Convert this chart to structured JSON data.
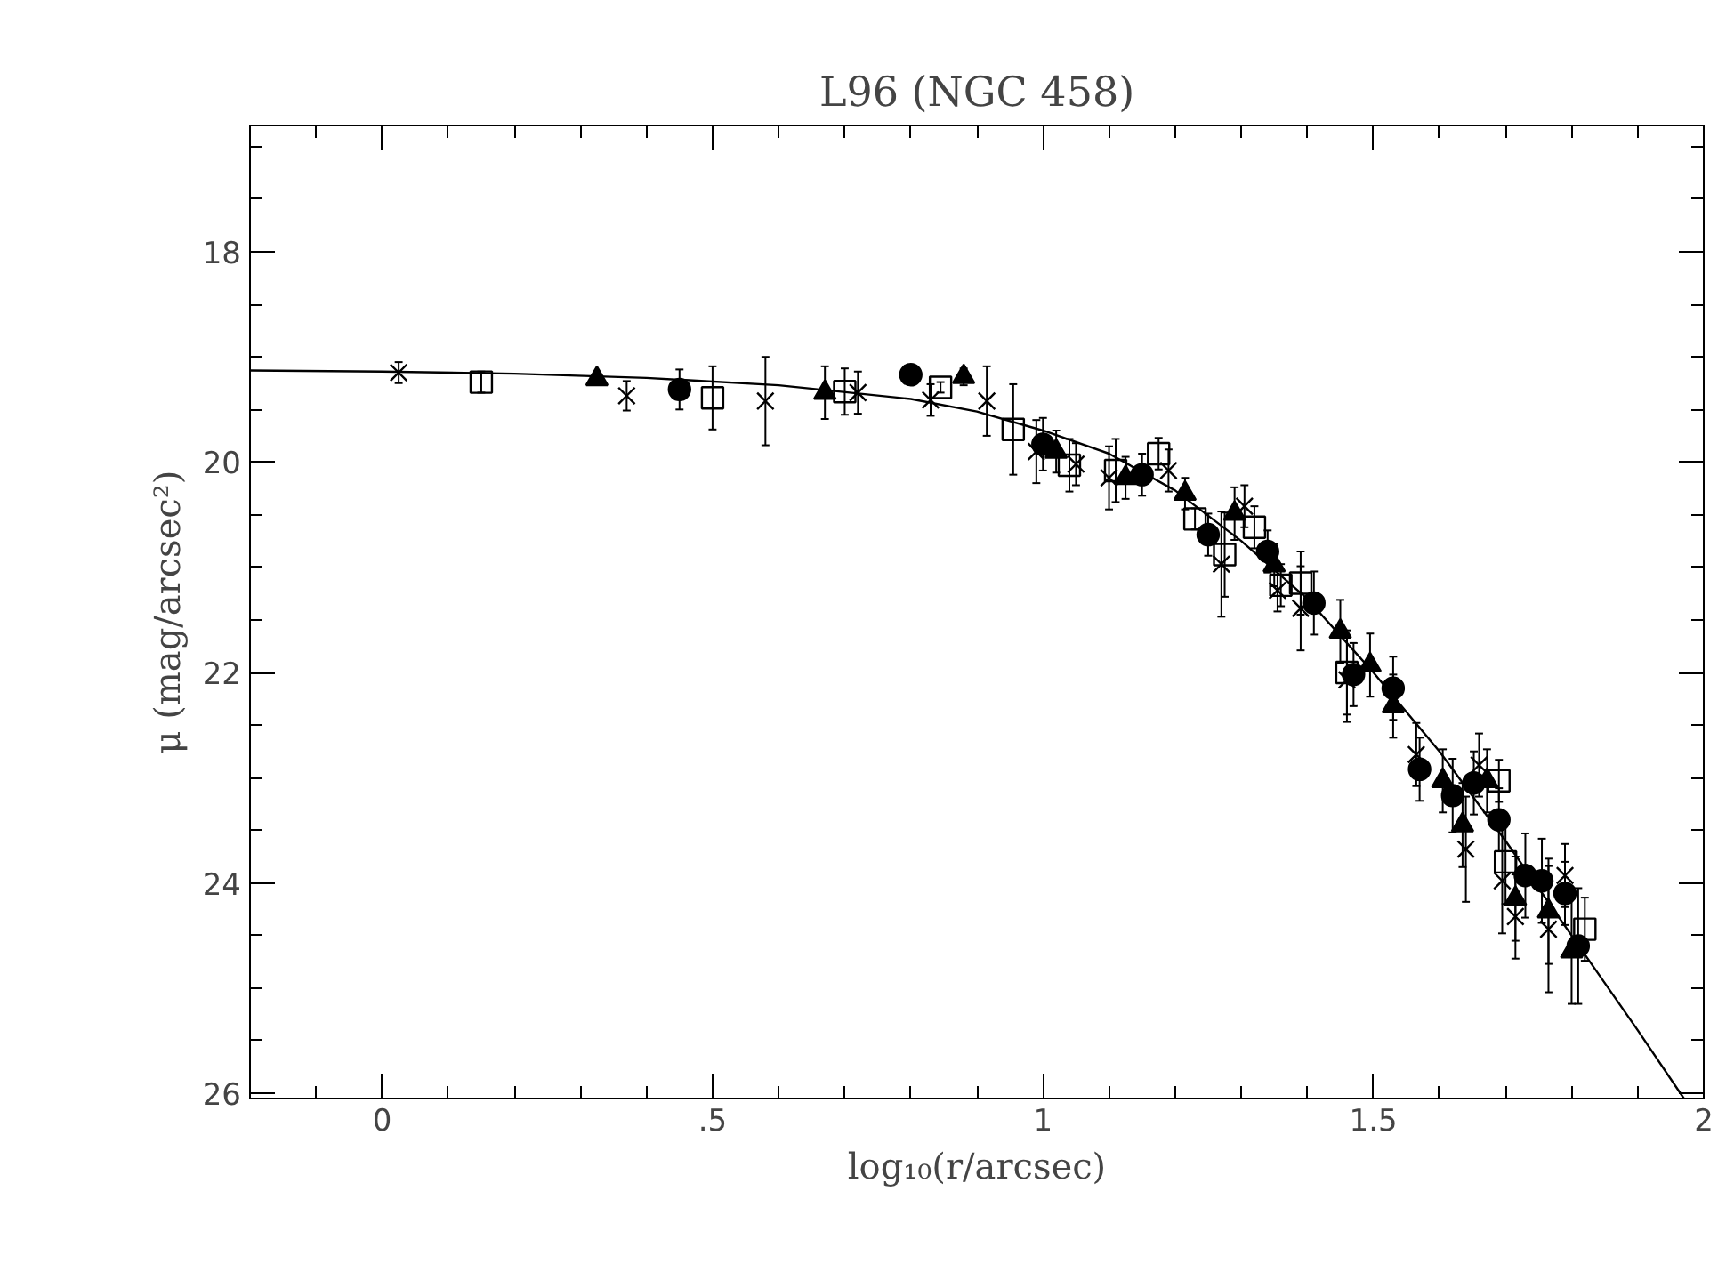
{
  "chart_data": {
    "type": "scatter",
    "title": "L96 (NGC 458)",
    "xlabel": "log₁₀(r/arcsec)",
    "ylabel": "μ (mag/arcsec²)",
    "xlim": [
      -0.2,
      2.0
    ],
    "ylim": [
      26.05,
      16.8
    ],
    "xticks": [
      0,
      {
        "value": 0.5,
        "label": ".5"
      },
      1,
      1.5,
      2
    ],
    "yticks": [
      18,
      20,
      22,
      24,
      26
    ],
    "grid": false,
    "series": [
      {
        "marker": "cross",
        "color": "#000000",
        "x": [
          0.025,
          0.37,
          0.58,
          0.72,
          0.83,
          0.915,
          0.99,
          1.05,
          1.1,
          1.19,
          1.27,
          1.305,
          1.355,
          1.39,
          1.46,
          1.565,
          1.64,
          1.66,
          1.695,
          1.715,
          1.765,
          1.79
        ],
        "values": [
          19.15,
          19.37,
          19.42,
          19.34,
          19.41,
          19.42,
          19.9,
          20.02,
          20.15,
          20.08,
          20.97,
          20.42,
          21.22,
          21.39,
          22.07,
          22.78,
          23.68,
          22.88,
          23.98,
          24.32,
          24.44,
          23.93
        ],
        "errors": [
          0.1,
          0.14,
          0.42,
          0.2,
          0.15,
          0.33,
          0.3,
          0.2,
          0.3,
          0.2,
          0.5,
          0.2,
          0.2,
          0.4,
          0.4,
          0.3,
          0.5,
          0.3,
          0.5,
          0.4,
          0.6,
          0.3
        ]
      },
      {
        "marker": "square",
        "color": "#000000",
        "x": [
          0.15,
          0.5,
          0.7,
          0.845,
          0.955,
          1.04,
          1.11,
          1.175,
          1.23,
          1.275,
          1.32,
          1.36,
          1.39,
          1.46,
          1.69,
          1.7,
          1.82
        ],
        "values": [
          19.24,
          19.39,
          19.33,
          19.29,
          19.69,
          20.03,
          20.08,
          19.92,
          20.54,
          20.88,
          20.62,
          21.17,
          21.15,
          22.0,
          23.03,
          23.8,
          24.44
        ],
        "errors": [
          0.1,
          0.3,
          0.22,
          0.05,
          0.43,
          0.25,
          0.3,
          0.15,
          0.1,
          0.4,
          0.2,
          0.2,
          0.3,
          0.4,
          0.2,
          0.4,
          0.3
        ]
      },
      {
        "marker": "triangle",
        "color": "#000000",
        "x": [
          0.325,
          0.67,
          0.88,
          1.02,
          1.125,
          1.215,
          1.29,
          1.35,
          1.45,
          1.495,
          1.53,
          1.605,
          1.635,
          1.672,
          1.715,
          1.765,
          1.8
        ],
        "values": [
          19.21,
          19.34,
          19.19,
          19.9,
          20.15,
          20.3,
          20.49,
          20.98,
          21.61,
          21.93,
          22.32,
          23.03,
          23.45,
          23.03,
          24.15,
          24.27,
          24.65
        ],
        "errors": [
          0.05,
          0.25,
          0.08,
          0.2,
          0.2,
          0.15,
          0.25,
          0.2,
          0.3,
          0.3,
          0.3,
          0.3,
          0.4,
          0.3,
          0.4,
          0.5,
          0.5
        ]
      },
      {
        "marker": "circle",
        "color": "#000000",
        "x": [
          0.45,
          0.8,
          1.0,
          1.15,
          1.25,
          1.34,
          1.41,
          1.47,
          1.53,
          1.57,
          1.62,
          1.652,
          1.69,
          1.73,
          1.755,
          1.79,
          1.81
        ],
        "values": [
          19.31,
          19.17,
          19.83,
          20.12,
          20.69,
          20.85,
          21.34,
          22.02,
          22.15,
          22.92,
          23.17,
          23.05,
          23.4,
          23.93,
          23.98,
          24.1,
          24.6
        ],
        "errors": [
          0.19,
          null,
          0.25,
          0.2,
          0.2,
          0.2,
          0.3,
          0.3,
          0.3,
          0.3,
          0.35,
          0.3,
          0.3,
          0.4,
          0.4,
          0.3,
          0.55
        ]
      },
      {
        "type": "line",
        "line_style": "solid",
        "color": "#000000",
        "x": [
          -0.2,
          0,
          0.2,
          0.4,
          0.6,
          0.8,
          0.9,
          1.0,
          1.1,
          1.2,
          1.3,
          1.4,
          1.5,
          1.6,
          1.7,
          1.8,
          1.9,
          1.97
        ],
        "values": [
          19.13,
          19.14,
          19.16,
          19.2,
          19.27,
          19.4,
          19.52,
          19.7,
          19.92,
          20.27,
          20.75,
          21.3,
          22.0,
          22.75,
          23.6,
          24.5,
          25.4,
          26.05
        ]
      }
    ]
  }
}
